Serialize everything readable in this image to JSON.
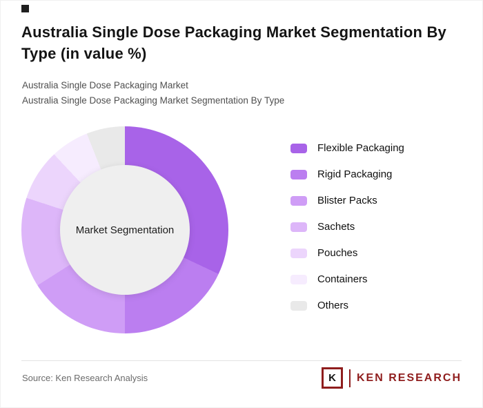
{
  "header": {
    "title": "Australia Single Dose Packaging Market Segmentation By Type (in value %)",
    "subtitle1": "Australia Single Dose Packaging Market",
    "subtitle2": "Australia Single Dose Packaging Market Segmentation By Type"
  },
  "chart_data": {
    "type": "pie",
    "subtype": "donut",
    "title": "Australia Single Dose Packaging Market Segmentation By Type (in value %)",
    "center_label": "Market Segmentation",
    "categories": [
      "Flexible Packaging",
      "Rigid Packaging",
      "Blister Packs",
      "Sachets",
      "Pouches",
      "Containers",
      "Others"
    ],
    "values": [
      32,
      18,
      16,
      14,
      8,
      6,
      6
    ],
    "colors": [
      "#a863e8",
      "#bb7ef0",
      "#cf9df6",
      "#ddb6f9",
      "#ecd5fc",
      "#f6ecfe",
      "#e9e9e9"
    ],
    "legend_position": "right",
    "start_angle_deg": 0,
    "direction": "clockwise",
    "hole_color": "#efefef"
  },
  "footer": {
    "source": "Source: Ken Research Analysis",
    "logo_letter": "K",
    "logo_text": "KEN RESEARCH",
    "logo_color": "#8f1d1d"
  }
}
